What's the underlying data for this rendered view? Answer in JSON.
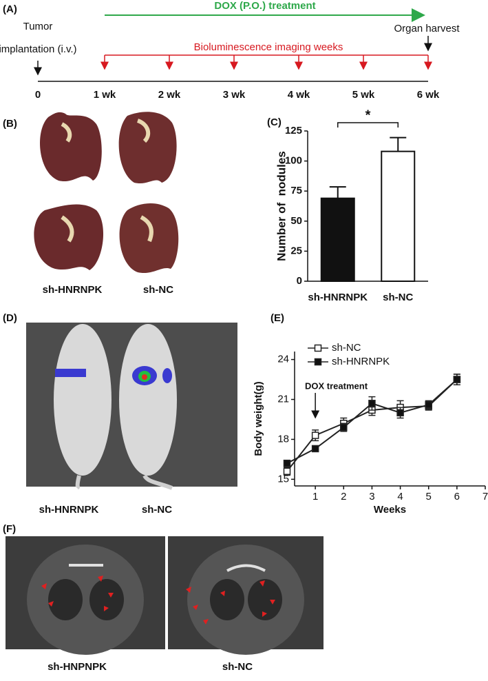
{
  "panel_a": {
    "label": "(A)",
    "treatment": "DOX (P.O.) treatment",
    "implantation": [
      "Tumor",
      "implantation (i.v.)"
    ],
    "harvest": "Organ harvest",
    "imaging": "Bioluminescence imaging weeks",
    "timeline": [
      "0",
      "1 wk",
      "2 wk",
      "3 wk",
      "4 wk",
      "5 wk",
      "6 wk"
    ]
  },
  "panel_b": {
    "label": "(B)",
    "groups": [
      "sh-HNRNPK",
      "sh-NC"
    ]
  },
  "panel_d": {
    "label": "(D)",
    "groups": [
      "sh-HNRNPK",
      "sh-NC"
    ]
  },
  "panel_f": {
    "label": "(F)",
    "groups": [
      "sh-HNPNPK",
      "sh-NC"
    ]
  },
  "chart_data": [
    {
      "type": "bar",
      "panel_label": "(C)",
      "categories": [
        "sh-HNRNPK",
        "sh-NC"
      ],
      "values": [
        69,
        108
      ],
      "errors": [
        9.5,
        11.5
      ],
      "colors": [
        "#111111",
        "#ffffff"
      ],
      "ylabel": "Number of  nodules",
      "ylim": [
        0,
        125
      ],
      "yticks": [
        0,
        25,
        50,
        75,
        100,
        125
      ],
      "annotation": "*"
    },
    {
      "type": "line",
      "panel_label": "(E)",
      "x": [
        0,
        1,
        2,
        3,
        4,
        5,
        6
      ],
      "series": [
        {
          "name": "sh-NC",
          "color": "#222222",
          "marker_fill": "#ffffff",
          "values": [
            15.6,
            18.3,
            19.2,
            20.2,
            20.4,
            20.5,
            22.5
          ],
          "errors": [
            0.3,
            0.4,
            0.4,
            0.4,
            0.5,
            0.3,
            0.4
          ]
        },
        {
          "name": "sh-HNRNPK",
          "color": "#222222",
          "marker_fill": "#111111",
          "values": [
            16.2,
            17.3,
            18.9,
            20.7,
            20.0,
            20.6,
            22.5
          ],
          "errors": [
            0.2,
            0.1,
            0.3,
            0.5,
            0.4,
            0.3,
            0.4
          ]
        }
      ],
      "xlabel": "Weeks",
      "ylabel": "Body weight(g)",
      "xlim": [
        0,
        7
      ],
      "ylim": [
        14.5,
        24.6
      ],
      "xticks": [
        1,
        2,
        3,
        4,
        5,
        6,
        7
      ],
      "yticks": [
        15,
        18,
        21,
        24
      ],
      "annotation": "DOX treatment",
      "annotation_x": 1
    }
  ]
}
